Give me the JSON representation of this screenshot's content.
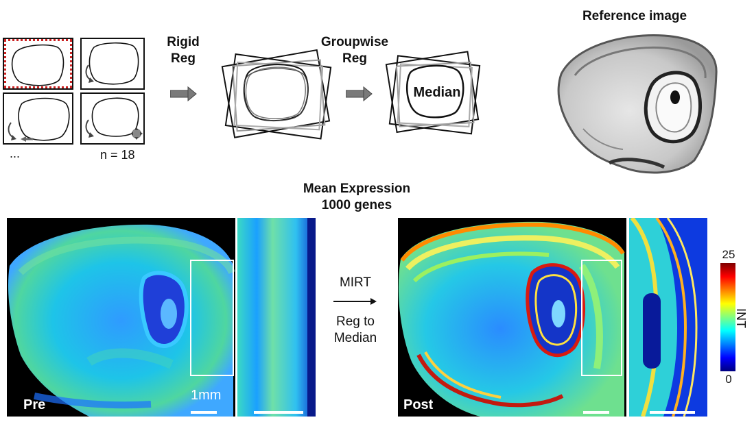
{
  "workflow": {
    "ellipsis": "...",
    "n_label": "n = 18",
    "step1_line1": "Rigid",
    "step1_line2": "Reg",
    "step2_line1": "Groupwise",
    "step2_line2": "Reg",
    "median_label": "Median",
    "reference_title": "Reference image"
  },
  "mean_expression": {
    "title_line1": "Mean Expression",
    "title_line2": "1000 genes"
  },
  "method": {
    "line1": "MIRT",
    "line2": "Reg to",
    "line3": "Median"
  },
  "panels": {
    "pre_label": "Pre",
    "post_label": "Post",
    "scale_label": "1mm"
  },
  "colorbar": {
    "max": "25",
    "min": "0",
    "axis_label": "INT",
    "stops": [
      "#00007f",
      "#0000ff",
      "#0080ff",
      "#00ffff",
      "#80ff80",
      "#ffff00",
      "#ff8000",
      "#ff0000",
      "#7f0000"
    ]
  },
  "colors": {
    "roi_dash": "#cc2222",
    "arrow_fill": "#7a7a7a"
  }
}
